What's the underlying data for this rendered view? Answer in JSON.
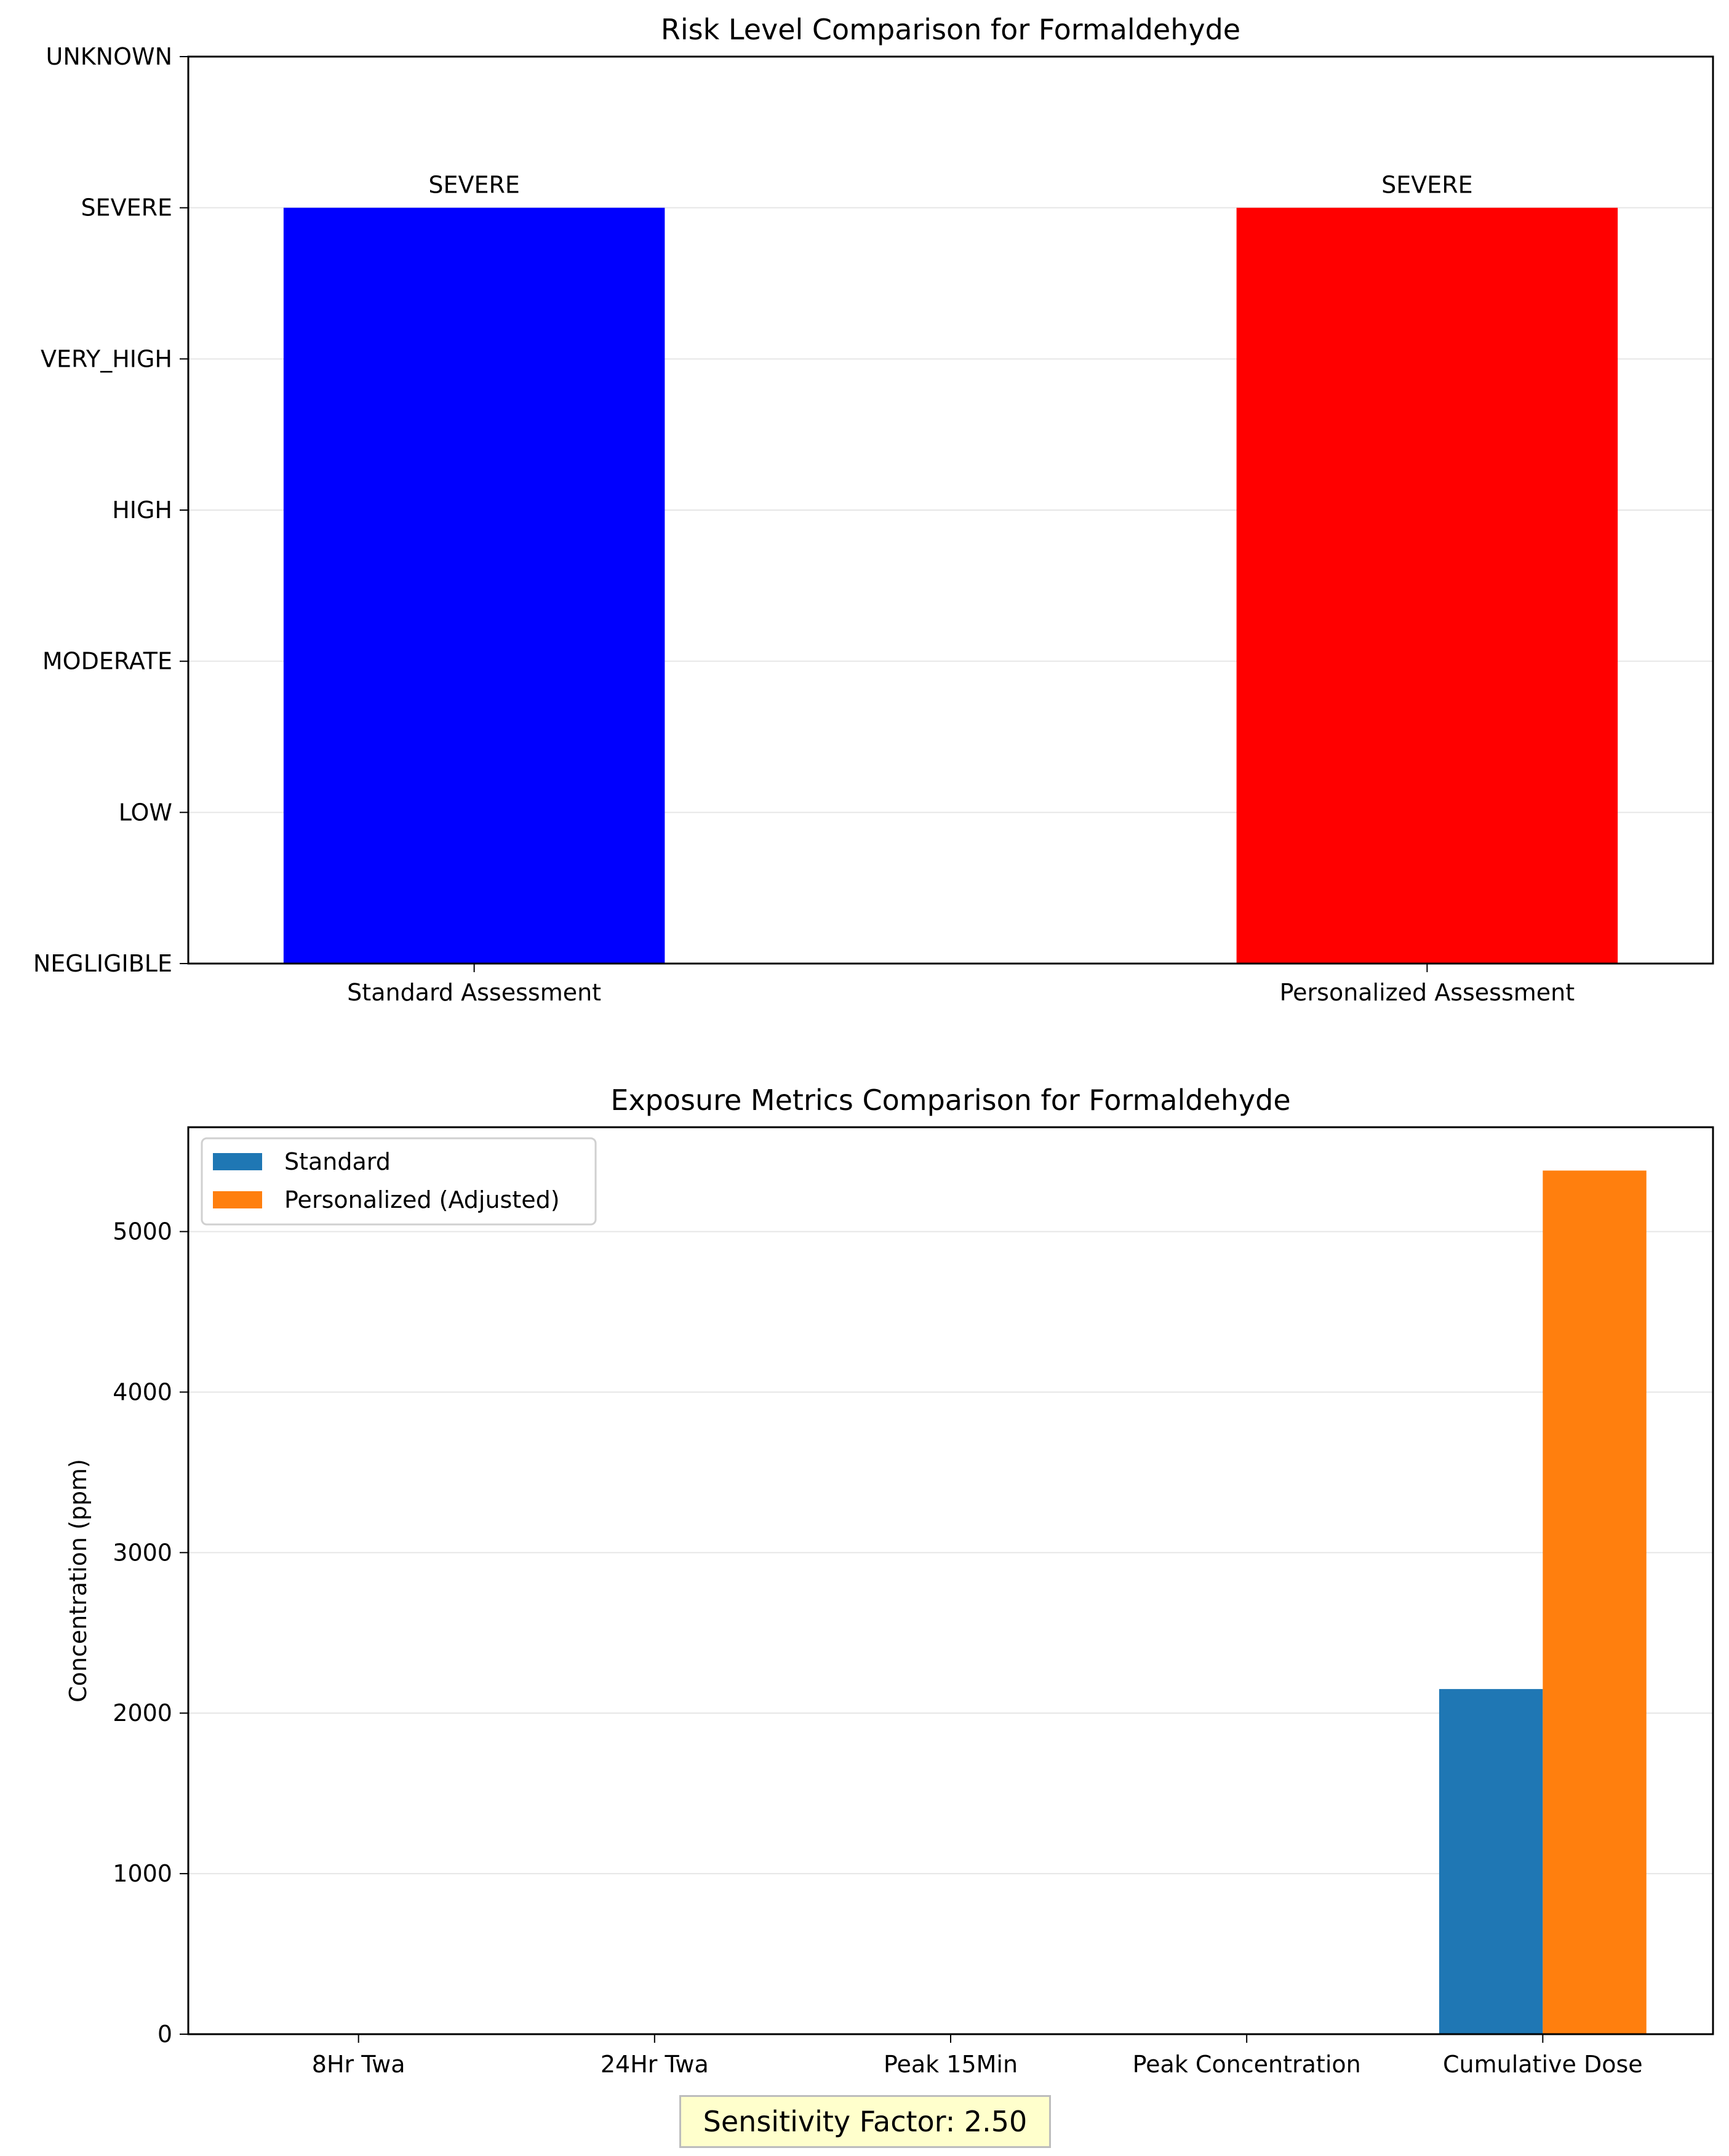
{
  "chart_data": [
    {
      "type": "bar",
      "title": "Risk Level Comparison for Formaldehyde",
      "xlabel": "",
      "ylabel": "",
      "categories": [
        "Standard Assessment",
        "Personalized Assessment"
      ],
      "y_levels": [
        "NEGLIGIBLE",
        "LOW",
        "MODERATE",
        "HIGH",
        "VERY_HIGH",
        "SEVERE",
        "UNKNOWN"
      ],
      "values": [
        "SEVERE",
        "SEVERE"
      ],
      "value_labels": [
        "SEVERE",
        "SEVERE"
      ],
      "bar_colors": [
        "#0000ff",
        "#ff0000"
      ],
      "grid": "horizontal"
    },
    {
      "type": "bar",
      "title": "Exposure Metrics Comparison for Formaldehyde",
      "xlabel": "",
      "ylabel": "Concentration (ppm)",
      "categories": [
        "8Hr Twa",
        "24Hr Twa",
        "Peak 15Min",
        "Peak Concentration",
        "Cumulative Dose"
      ],
      "series": [
        {
          "name": "Standard",
          "color": "#1f77b4",
          "values": [
            0,
            0,
            0,
            0,
            2150
          ]
        },
        {
          "name": "Personalized (Adjusted)",
          "color": "#ff7f0e",
          "values": [
            0,
            0,
            0,
            0,
            5380
          ]
        }
      ],
      "ylim": [
        0,
        5650
      ],
      "yticks": [
        "0",
        "1000",
        "2000",
        "3000",
        "4000",
        "5000"
      ],
      "legend": "top-left",
      "grid": "horizontal"
    }
  ],
  "sensitivity_label": "Sensitivity Factor: 2.50"
}
